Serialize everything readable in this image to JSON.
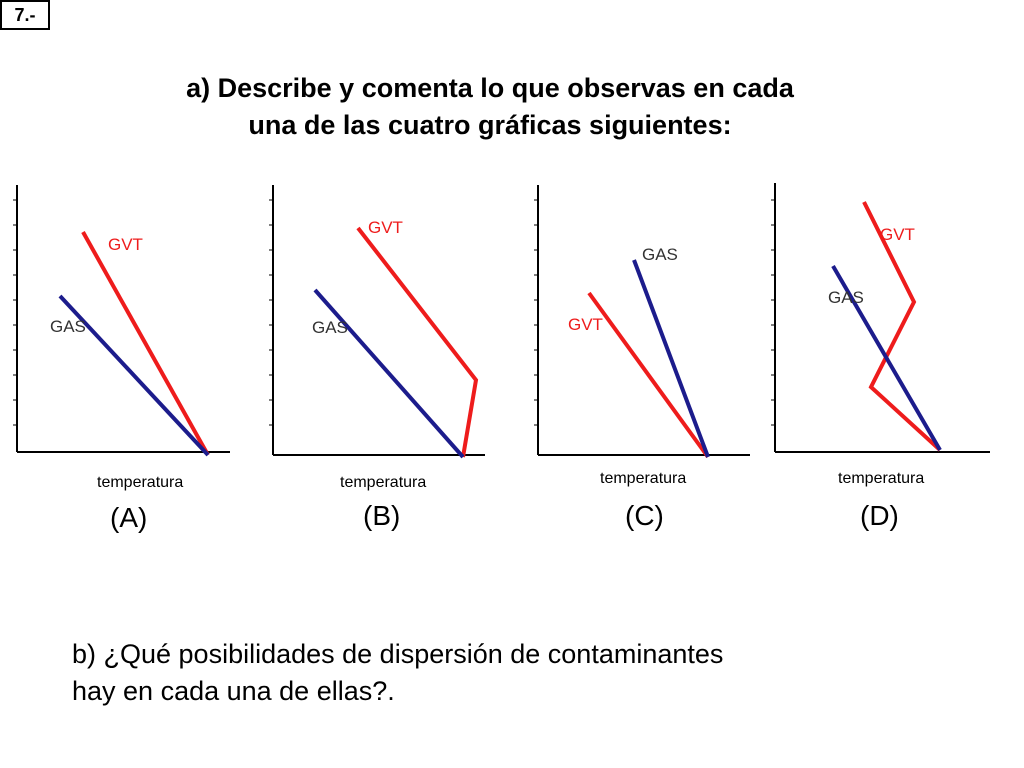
{
  "slide_number": "7.-",
  "question_a": {
    "line1": "a) Describe y comenta lo que observas en cada",
    "line2": "una de las cuatro gráficas siguientes:"
  },
  "question_b": {
    "line1": "b) ¿Qué posibilidades de dispersión de contaminantes",
    "line2": "hay en cada una de ellas?."
  },
  "colors": {
    "gvt": "#ee1c1c",
    "gas": "#1c1c8c",
    "axis": "#000000"
  },
  "graphs": [
    {
      "id": "A",
      "caption": "(A)",
      "xlabel": "temperatura",
      "gvt_label": "GVT",
      "gas_label": "GAS"
    },
    {
      "id": "B",
      "caption": "(B)",
      "xlabel": "temperatura",
      "gvt_label": "GVT",
      "gas_label": "GAS"
    },
    {
      "id": "C",
      "caption": "(C)",
      "xlabel": "temperatura",
      "gvt_label": "GVT",
      "gas_label": "GAS"
    },
    {
      "id": "D",
      "caption": "(D)",
      "xlabel": "temperatura",
      "gvt_label": "GVT",
      "gas_label": "GAS"
    }
  ]
}
